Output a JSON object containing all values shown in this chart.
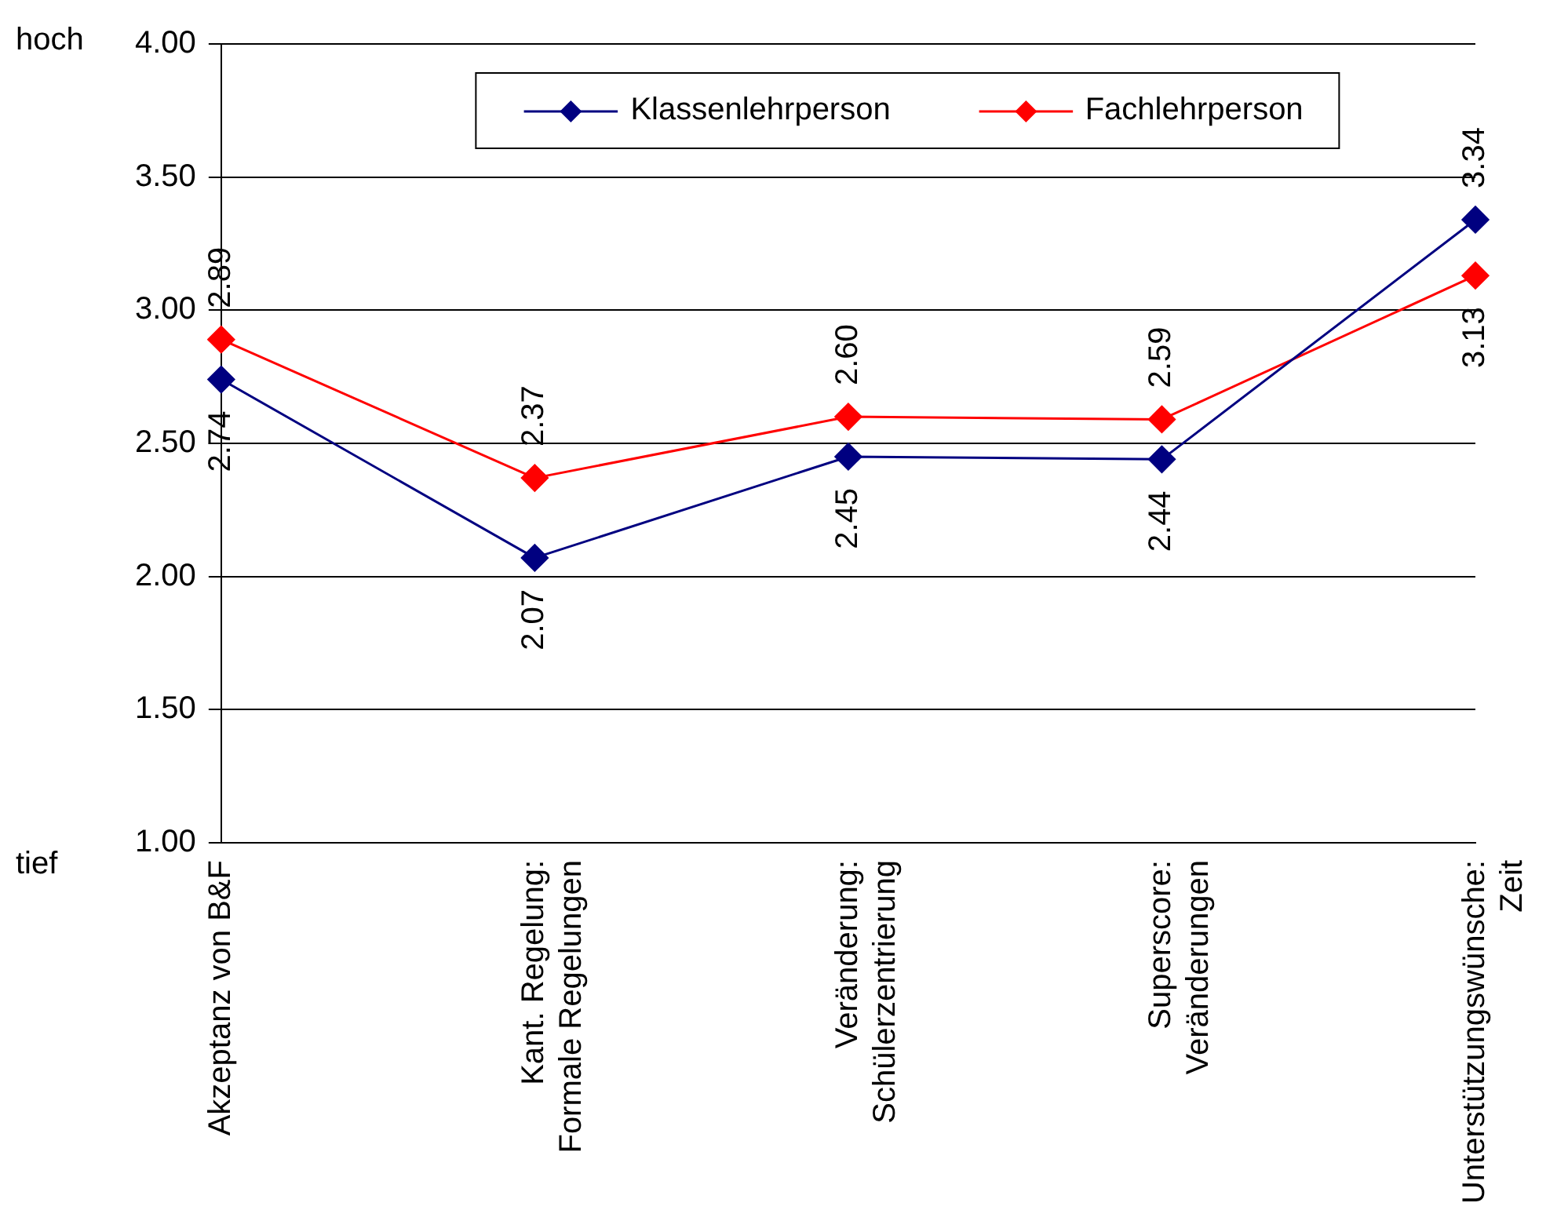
{
  "chart_data": {
    "type": "line",
    "categories": [
      "Akzeptanz von B&F",
      "Kant. Regelung: Formale Regelungen",
      "Veränderung: Schülerzentrierung",
      "Superscore: Veränderungen",
      "Unterstützungswünsche: Zeit"
    ],
    "series": [
      {
        "name": "Klassenlehrperson",
        "color": "#000080",
        "values": [
          2.74,
          2.07,
          2.45,
          2.44,
          3.34
        ],
        "value_labels": [
          "2.74",
          "2.07",
          "2.45",
          "2.44",
          "3.34"
        ]
      },
      {
        "name": "Fachlehrperson",
        "color": "#ff0000",
        "values": [
          2.89,
          2.37,
          2.6,
          2.59,
          3.13
        ],
        "value_labels": [
          "2.89",
          "2.37",
          "2.60",
          "2.59",
          "3.13"
        ]
      }
    ],
    "ylim": [
      1,
      4
    ],
    "yticks": [
      {
        "value": 1,
        "label": "1.00"
      },
      {
        "value": 1.5,
        "label": "1.50"
      },
      {
        "value": 2,
        "label": "2.00"
      },
      {
        "value": 2.5,
        "label": "2.50"
      },
      {
        "value": 3,
        "label": "3.00"
      },
      {
        "value": 3.5,
        "label": "3.50"
      },
      {
        "value": 4,
        "label": "4.00"
      }
    ],
    "annotations": [
      "hoch",
      "tief"
    ],
    "grid": "y",
    "legend": "top",
    "marker": "diamond",
    "line_style": "solid"
  }
}
